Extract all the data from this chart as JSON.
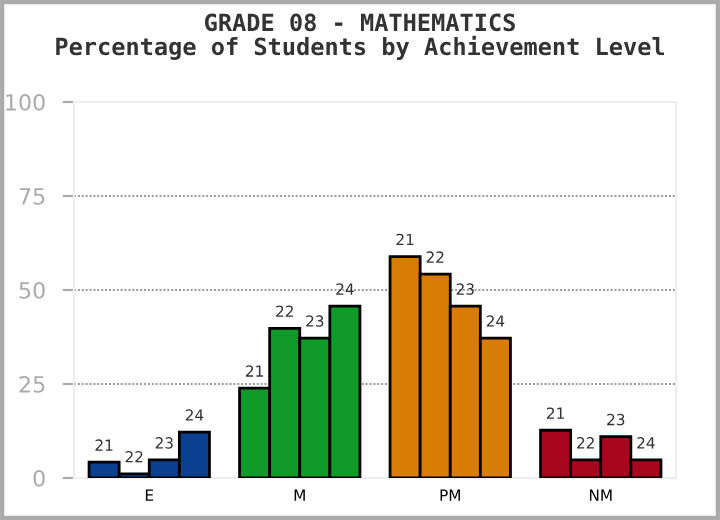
{
  "chart_data": {
    "type": "bar",
    "title": "GRADE 08 - MATHEMATICS\nPercentage of Students by Achievement Level",
    "categories": [
      "E",
      "M",
      "PM",
      "NM"
    ],
    "series": [
      {
        "name": "21",
        "colors": [
          "#0b3f8f",
          "#109a28",
          "#d97c06",
          "#a6071f"
        ],
        "values": [
          4.2,
          23.9,
          58.9,
          12.7
        ]
      },
      {
        "name": "22",
        "colors": [
          "#0b3f8f",
          "#109a28",
          "#d97c06",
          "#a6071f"
        ],
        "values": [
          1.1,
          39.8,
          54.2,
          4.8
        ]
      },
      {
        "name": "23",
        "colors": [
          "#0b3f8f",
          "#109a28",
          "#d97c06",
          "#a6071f"
        ],
        "values": [
          4.8,
          37.2,
          45.7,
          11.0
        ]
      },
      {
        "name": "24",
        "colors": [
          "#0b3f8f",
          "#109a28",
          "#d97c06",
          "#a6071f"
        ],
        "values": [
          12.2,
          45.7,
          37.2,
          4.8
        ]
      }
    ],
    "ylim": [
      0,
      100
    ],
    "yticks": [
      0,
      25,
      50,
      75,
      100
    ],
    "grid": "y",
    "legend": false
  }
}
